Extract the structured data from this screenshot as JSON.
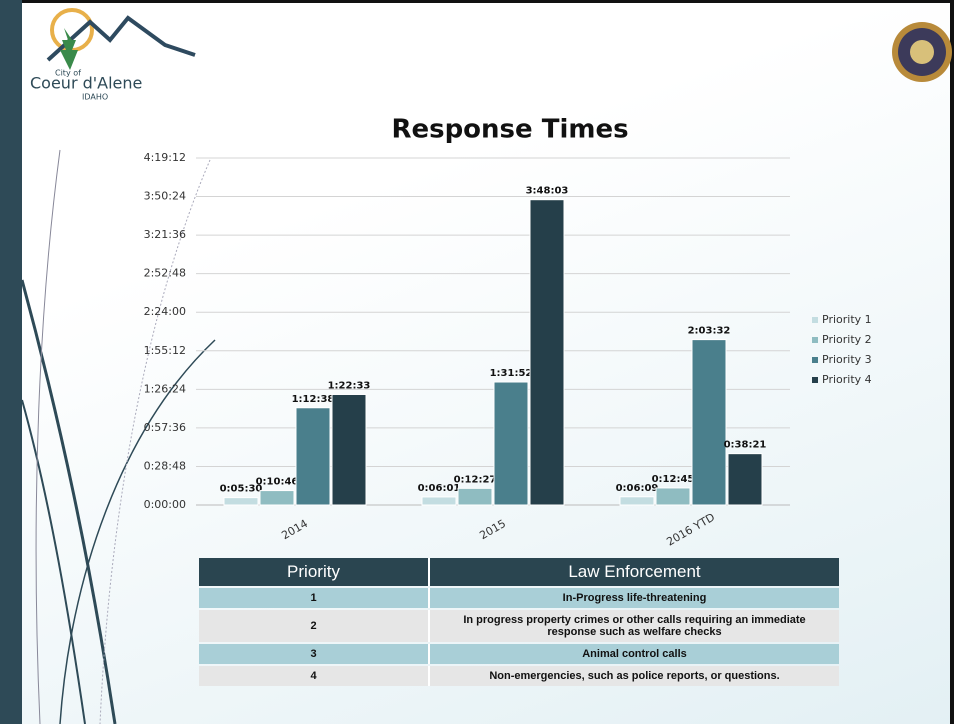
{
  "logo": {
    "city": "City of",
    "name": "Coeur d'Alene",
    "state": "IDAHO"
  },
  "chart_data": {
    "type": "bar",
    "title": "Response Times",
    "categories": [
      "2014",
      "2015",
      "2016 YTD"
    ],
    "series": [
      {
        "name": "Priority 1",
        "color": "#c3dde1",
        "values": [
          330,
          361,
          369
        ],
        "value_labels": [
          "0:05:30",
          "0:06:01",
          "0:06:09"
        ]
      },
      {
        "name": "Priority 2",
        "color": "#8fbcc1",
        "values": [
          646,
          747,
          765
        ],
        "value_labels": [
          "0:10:46",
          "0:12:27",
          "0:12:45"
        ]
      },
      {
        "name": "Priority 3",
        "color": "#4a7f8c",
        "values": [
          4358,
          5512,
          7412
        ],
        "value_labels": [
          "1:12:38",
          "1:31:52",
          "2:03:32"
        ]
      },
      {
        "name": "Priority 4",
        "color": "#253f4a",
        "values": [
          4953,
          13683,
          2301
        ],
        "value_labels": [
          "1:22:33",
          "3:48:03",
          "0:38:21"
        ]
      }
    ],
    "ylim": [
      0,
      15552
    ],
    "yticks": [
      {
        "value": 0,
        "label": "0:00:00"
      },
      {
        "value": 1728,
        "label": "0:28:48"
      },
      {
        "value": 3456,
        "label": "0:57:36"
      },
      {
        "value": 5184,
        "label": "1:26:24"
      },
      {
        "value": 6912,
        "label": "1:55:12"
      },
      {
        "value": 8640,
        "label": "2:24:00"
      },
      {
        "value": 10368,
        "label": "2:52:48"
      },
      {
        "value": 12096,
        "label": "3:21:36"
      },
      {
        "value": 13824,
        "label": "3:50:24"
      },
      {
        "value": 15552,
        "label": "4:19:12"
      }
    ],
    "grid": true,
    "legend": "right"
  },
  "table": {
    "header": [
      "Priority",
      "Law Enforcement"
    ],
    "rows": [
      [
        "1",
        "In-Progress life-threatening"
      ],
      [
        "2",
        "In progress property crimes or other calls requiring an immediate response such as welfare checks"
      ],
      [
        "3",
        "Animal control calls"
      ],
      [
        "4",
        "Non-emergencies, such as police reports, or questions."
      ]
    ]
  }
}
